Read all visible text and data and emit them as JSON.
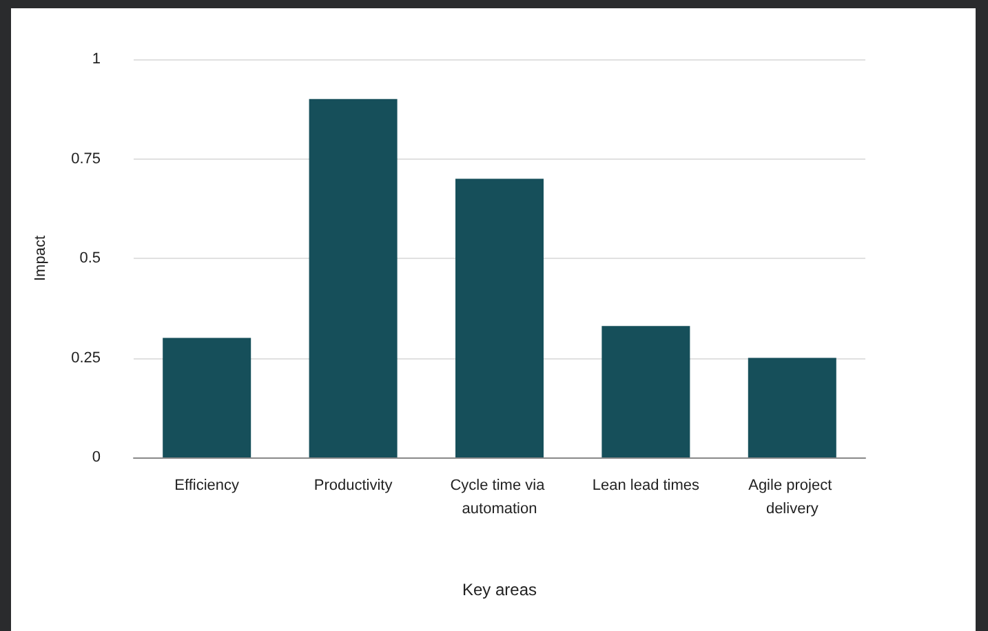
{
  "chart_data": {
    "type": "bar",
    "xlabel": "Key areas",
    "ylabel": "Impact",
    "categories": [
      "Efficiency",
      "Productivity",
      "Cycle time via automation",
      "Lean lead times",
      "Agile project delivery"
    ],
    "values": [
      0.3,
      0.9,
      0.7,
      0.33,
      0.25
    ],
    "color": "#164f5a",
    "ylim": [
      0,
      1
    ],
    "yticks": [
      0,
      0.25,
      0.5,
      0.75,
      1
    ],
    "grid": "y"
  }
}
